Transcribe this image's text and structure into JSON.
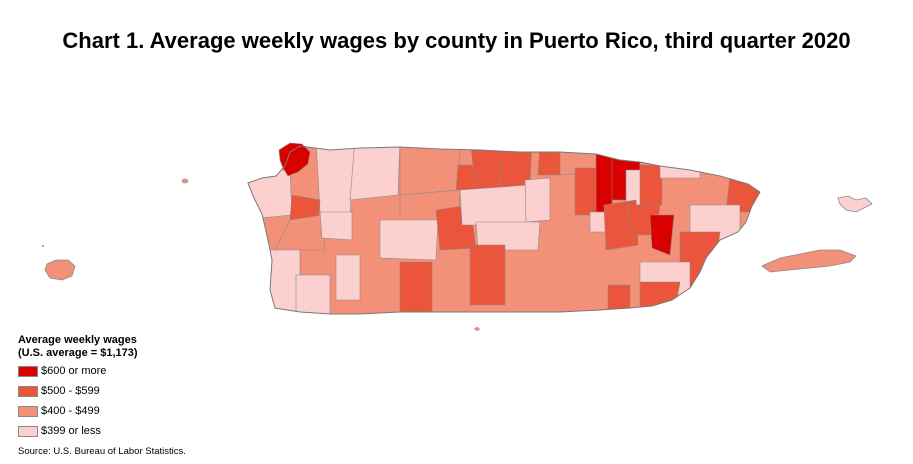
{
  "title": "Chart 1. Average weekly wages by county in Puerto Rico, third quarter 2020",
  "legend": {
    "title_line1": "Average weekly wages",
    "title_line2": "(U.S. average = $1,173)",
    "items": [
      {
        "label": "$600 or more",
        "color": "#d90000"
      },
      {
        "label": "$500 - $599",
        "color": "#ea553b"
      },
      {
        "label": "$400 - $499",
        "color": "#f39178"
      },
      {
        "label": "$399 or less",
        "color": "#fcd0cf"
      }
    ]
  },
  "source": "Source: U.S. Bureau of Labor Statistics."
}
